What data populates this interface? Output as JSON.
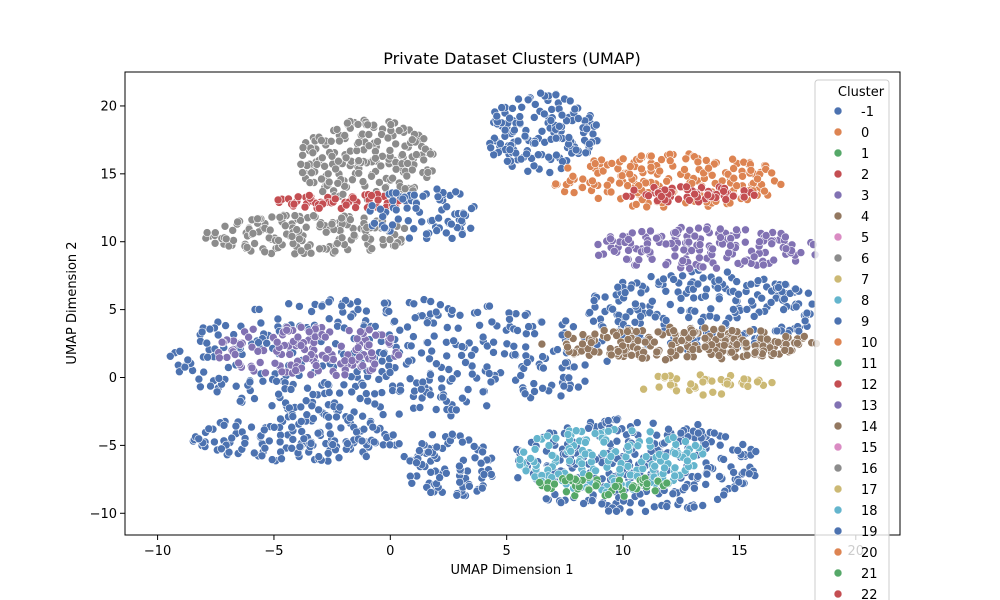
{
  "chart_data": {
    "type": "scatter",
    "title": "Private Dataset Clusters (UMAP)",
    "xlabel": "UMAP Dimension 1",
    "ylabel": "UMAP Dimension 2",
    "xlim": [
      -11.4,
      21.9
    ],
    "ylim": [
      -11.6,
      22.5
    ],
    "xticks": [
      -10,
      -5,
      0,
      5,
      10,
      15,
      20
    ],
    "yticks": [
      -10,
      -5,
      0,
      5,
      10,
      15,
      20
    ],
    "legend": {
      "title": "Cluster",
      "position": "top-right",
      "entries": [
        {
          "label": "-1",
          "color": "#4c72b0"
        },
        {
          "label": "0",
          "color": "#dd8452"
        },
        {
          "label": "1",
          "color": "#55a868"
        },
        {
          "label": "2",
          "color": "#c44e52"
        },
        {
          "label": "3",
          "color": "#8172b3"
        },
        {
          "label": "4",
          "color": "#937860"
        },
        {
          "label": "5",
          "color": "#da8bc3"
        },
        {
          "label": "6",
          "color": "#8c8c8c"
        },
        {
          "label": "7",
          "color": "#ccb974"
        },
        {
          "label": "8",
          "color": "#64b5cd"
        },
        {
          "label": "9",
          "color": "#4c72b0"
        },
        {
          "label": "10",
          "color": "#dd8452"
        },
        {
          "label": "11",
          "color": "#55a868"
        },
        {
          "label": "12",
          "color": "#c44e52"
        },
        {
          "label": "13",
          "color": "#8172b3"
        },
        {
          "label": "14",
          "color": "#937860"
        },
        {
          "label": "15",
          "color": "#da8bc3"
        },
        {
          "label": "16",
          "color": "#8c8c8c"
        },
        {
          "label": "17",
          "color": "#ccb974"
        },
        {
          "label": "18",
          "color": "#64b5cd"
        },
        {
          "label": "19",
          "color": "#4c72b0"
        },
        {
          "label": "20",
          "color": "#dd8452"
        },
        {
          "label": "21",
          "color": "#55a868"
        },
        {
          "label": "22",
          "color": "#c44e52"
        }
      ]
    },
    "regions": [
      {
        "cluster": "-1",
        "cx": 0.0,
        "cy": 1.5,
        "rx": 9.5,
        "ry": 4.5,
        "n": 420
      },
      {
        "cluster": "-1",
        "cx": 6.5,
        "cy": 18.0,
        "rx": 2.5,
        "ry": 3.0,
        "n": 160
      },
      {
        "cluster": "-1",
        "cx": 10.5,
        "cy": -6.5,
        "rx": 5.5,
        "ry": 3.5,
        "n": 300
      },
      {
        "cluster": "-1",
        "cx": 13.5,
        "cy": 5.0,
        "rx": 5.0,
        "ry": 3.0,
        "n": 220
      },
      {
        "cluster": "-1",
        "cx": -4.0,
        "cy": -4.5,
        "rx": 4.5,
        "ry": 1.8,
        "n": 150
      },
      {
        "cluster": "-1",
        "cx": 2.5,
        "cy": -6.5,
        "rx": 2.0,
        "ry": 2.5,
        "n": 90
      },
      {
        "cluster": "6",
        "cx": -1.0,
        "cy": 16.0,
        "rx": 3.0,
        "ry": 3.0,
        "n": 200
      },
      {
        "cluster": "6",
        "cx": -3.5,
        "cy": 10.5,
        "rx": 4.5,
        "ry": 1.5,
        "n": 160
      },
      {
        "cluster": "0",
        "cx": 12.0,
        "cy": 14.5,
        "rx": 5.0,
        "ry": 2.0,
        "n": 200
      },
      {
        "cluster": "4",
        "cx": 12.5,
        "cy": 2.5,
        "rx": 6.0,
        "ry": 1.2,
        "n": 220
      },
      {
        "cluster": "3",
        "cx": 13.5,
        "cy": 9.5,
        "rx": 5.0,
        "ry": 1.6,
        "n": 160
      },
      {
        "cluster": "3",
        "cx": -3.5,
        "cy": 2.0,
        "rx": 4.0,
        "ry": 2.0,
        "n": 140
      },
      {
        "cluster": "8",
        "cx": 9.5,
        "cy": -6.0,
        "rx": 4.0,
        "ry": 2.5,
        "n": 160
      },
      {
        "cluster": "2",
        "cx": -2.0,
        "cy": 13.0,
        "rx": 3.0,
        "ry": 0.6,
        "n": 60
      },
      {
        "cluster": "2",
        "cx": 13.0,
        "cy": 13.5,
        "rx": 3.0,
        "ry": 0.6,
        "n": 60
      },
      {
        "cluster": "1",
        "cx": 9.0,
        "cy": -8.0,
        "rx": 3.0,
        "ry": 0.8,
        "n": 50
      },
      {
        "cluster": "7",
        "cx": 13.5,
        "cy": -0.5,
        "rx": 3.0,
        "ry": 0.8,
        "n": 40
      },
      {
        "cluster": "-1",
        "cx": 1.5,
        "cy": 12.0,
        "rx": 2.5,
        "ry": 2.0,
        "n": 80
      }
    ]
  }
}
